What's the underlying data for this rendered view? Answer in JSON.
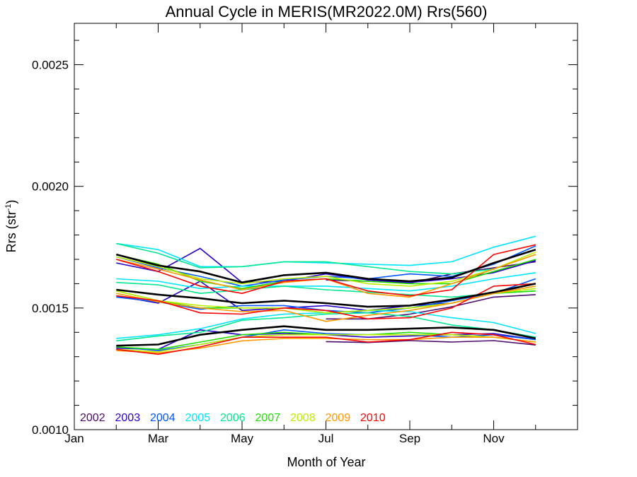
{
  "chart_data": {
    "type": "line",
    "title": "Annual Cycle in MERIS(MR2022.0M) Rrs(560)",
    "xlabel": "Month of Year",
    "ylabel_main": "Rrs (str",
    "ylabel_sup": "-1",
    "ylabel_tail": ")",
    "xlim": [
      1,
      13
    ],
    "ylim": [
      0.001,
      0.00267
    ],
    "x_ticks": [
      {
        "value": 1,
        "label": "Jan"
      },
      {
        "value": 3,
        "label": "Mar"
      },
      {
        "value": 5,
        "label": "May"
      },
      {
        "value": 7,
        "label": "Jul"
      },
      {
        "value": 9,
        "label": "Sep"
      },
      {
        "value": 11,
        "label": "Nov"
      }
    ],
    "y_ticks": [
      {
        "value": 0.001,
        "label": "0.0010"
      },
      {
        "value": 0.0015,
        "label": "0.0015"
      },
      {
        "value": 0.002,
        "label": "0.0020"
      },
      {
        "value": 0.0025,
        "label": "0.0025"
      }
    ],
    "y_minor_ticks": [
      0.0011,
      0.0012,
      0.0013,
      0.0014,
      0.0016,
      0.0017,
      0.0018,
      0.0019,
      0.0021,
      0.0022,
      0.0023,
      0.0024,
      0.0026
    ],
    "x_minor_ticks": [
      2,
      4,
      6,
      8,
      10,
      12
    ],
    "grid": false,
    "legend_position": "bottom-left",
    "series": [
      {
        "name": "2002",
        "group": "high",
        "color": "#4b0a6e",
        "x": [
          7,
          8,
          9,
          10,
          11,
          12
        ],
        "y": [
          0.001615,
          0.00161,
          0.001602,
          0.00164,
          0.001665,
          0.00169
        ]
      },
      {
        "name": "2002",
        "group": "mid",
        "color": "#4b0a6e",
        "x": [
          7,
          8,
          9,
          10,
          11,
          12
        ],
        "y": [
          0.001455,
          0.001455,
          0.001475,
          0.001505,
          0.001545,
          0.001555
        ]
      },
      {
        "name": "2002",
        "group": "low",
        "color": "#4b0a6e",
        "x": [
          7,
          8,
          9,
          10,
          11,
          12
        ],
        "y": [
          0.001362,
          0.001358,
          0.001366,
          0.00136,
          0.001366,
          0.001348
        ]
      },
      {
        "name": "2003",
        "group": "high",
        "color": "#2a00c8",
        "x": [
          2,
          3,
          4,
          5,
          6,
          7,
          8,
          9,
          10,
          11,
          12
        ],
        "y": [
          0.001685,
          0.00165,
          0.001745,
          0.001605,
          0.00161,
          0.00164,
          0.001615,
          0.001605,
          0.00162,
          0.001645,
          0.001695
        ]
      },
      {
        "name": "2003",
        "group": "mid",
        "color": "#2a00c8",
        "x": [
          2,
          3,
          4,
          5,
          6,
          7,
          8,
          9,
          10,
          11,
          12
        ],
        "y": [
          0.00155,
          0.00152,
          0.00161,
          0.00149,
          0.0015,
          0.00151,
          0.00149,
          0.00151,
          0.00152,
          0.00156,
          0.0016
        ]
      },
      {
        "name": "2003",
        "group": "low",
        "color": "#2a00c8",
        "x": [
          2,
          3,
          4,
          5,
          6,
          7,
          8,
          9,
          10,
          11,
          12
        ],
        "y": [
          0.001335,
          0.00133,
          0.00141,
          0.00139,
          0.001395,
          0.00139,
          0.00138,
          0.001385,
          0.00139,
          0.001395,
          0.00137
        ]
      },
      {
        "name": "2004",
        "group": "high",
        "color": "#0055ff",
        "x": [
          2,
          3,
          4,
          5,
          6,
          7,
          8,
          9,
          10,
          11,
          12
        ],
        "y": [
          0.00171,
          0.001665,
          0.00163,
          0.00159,
          0.001615,
          0.00163,
          0.00162,
          0.00164,
          0.00163,
          0.00168,
          0.001755
        ]
      },
      {
        "name": "2004",
        "group": "mid",
        "color": "#0055ff",
        "x": [
          2,
          3,
          4,
          5,
          6,
          7,
          8,
          9,
          10,
          11,
          12
        ],
        "y": [
          0.001545,
          0.001525,
          0.001495,
          0.00151,
          0.00151,
          0.00149,
          0.00148,
          0.0015,
          0.00153,
          0.00156,
          0.00162
        ]
      },
      {
        "name": "2004",
        "group": "low",
        "color": "#0055ff",
        "x": [
          2,
          3,
          4,
          5,
          6,
          7,
          8,
          9,
          10,
          11,
          12
        ],
        "y": [
          0.00134,
          0.001325,
          0.00135,
          0.00138,
          0.00141,
          0.001395,
          0.00139,
          0.00139,
          0.00138,
          0.00139,
          0.00137
        ]
      },
      {
        "name": "2005",
        "group": "high",
        "color": "#00e5ff",
        "x": [
          2,
          3,
          4,
          5,
          6,
          7,
          8,
          9,
          10,
          11,
          12
        ],
        "y": [
          0.001765,
          0.00174,
          0.00167,
          0.00167,
          0.00169,
          0.001685,
          0.00168,
          0.001675,
          0.00169,
          0.00175,
          0.001795
        ]
      },
      {
        "name": "2005",
        "group": "mid",
        "color": "#00e5ff",
        "x": [
          2,
          3,
          4,
          5,
          6,
          7,
          8,
          9,
          10,
          11,
          12
        ],
        "y": [
          0.00162,
          0.00161,
          0.00158,
          0.00159,
          0.00159,
          0.00159,
          0.00158,
          0.00157,
          0.00159,
          0.00162,
          0.001645
        ]
      },
      {
        "name": "2005",
        "group": "low",
        "color": "#00e5ff",
        "x": [
          2,
          3,
          4,
          5,
          6,
          7,
          8,
          9,
          10,
          11,
          12
        ],
        "y": [
          0.001375,
          0.00139,
          0.001415,
          0.001455,
          0.001475,
          0.00148,
          0.00149,
          0.001485,
          0.00146,
          0.00144,
          0.001395
        ]
      },
      {
        "name": "2006",
        "group": "high",
        "color": "#00e890",
        "x": [
          2,
          3,
          4,
          5,
          6,
          7,
          8,
          9,
          10,
          11,
          12
        ],
        "y": [
          0.001765,
          0.001725,
          0.001665,
          0.00167,
          0.00169,
          0.00169,
          0.00167,
          0.00165,
          0.00164,
          0.00166,
          0.00172
        ]
      },
      {
        "name": "2006",
        "group": "mid",
        "color": "#00e890",
        "x": [
          2,
          3,
          4,
          5,
          6,
          7,
          8,
          9,
          10,
          11,
          12
        ],
        "y": [
          0.001605,
          0.001595,
          0.00156,
          0.001575,
          0.00159,
          0.001575,
          0.001565,
          0.001555,
          0.001545,
          0.00156,
          0.00157
        ]
      },
      {
        "name": "2006",
        "group": "low",
        "color": "#00e890",
        "x": [
          2,
          3,
          4,
          5,
          6,
          7,
          8,
          9,
          10,
          11,
          12
        ],
        "y": [
          0.001365,
          0.001385,
          0.0014,
          0.00145,
          0.00146,
          0.001475,
          0.00148,
          0.001465,
          0.00143,
          0.00141,
          0.00138
        ]
      },
      {
        "name": "2007",
        "group": "high",
        "color": "#22dd00",
        "x": [
          2,
          3,
          4,
          5,
          6,
          7,
          8,
          9,
          10,
          11,
          12
        ],
        "y": [
          0.00172,
          0.00168,
          0.00161,
          0.00158,
          0.00161,
          0.00162,
          0.00161,
          0.0016,
          0.0016,
          0.00165,
          0.0017
        ]
      },
      {
        "name": "2007",
        "group": "mid",
        "color": "#22dd00",
        "x": [
          2,
          3,
          4,
          5,
          6,
          7,
          8,
          9,
          10,
          11,
          12
        ],
        "y": [
          0.00157,
          0.00153,
          0.0015,
          0.0015,
          0.0015,
          0.00148,
          0.00149,
          0.0015,
          0.00152,
          0.00156,
          0.00157
        ]
      },
      {
        "name": "2007",
        "group": "low",
        "color": "#22dd00",
        "x": [
          2,
          3,
          4,
          5,
          6,
          7,
          8,
          9,
          10,
          11,
          12
        ],
        "y": [
          0.00134,
          0.00133,
          0.00136,
          0.00139,
          0.0014,
          0.00139,
          0.00139,
          0.0014,
          0.00139,
          0.00138,
          0.00136
        ]
      },
      {
        "name": "2008",
        "group": "high",
        "color": "#bbee00",
        "x": [
          2,
          3,
          4,
          5,
          6,
          7,
          8,
          9,
          10,
          11,
          12
        ],
        "y": [
          0.00171,
          0.00167,
          0.00162,
          0.0016,
          0.00162,
          0.00163,
          0.0016,
          0.00159,
          0.00161,
          0.00166,
          0.00173
        ]
      },
      {
        "name": "2008",
        "group": "mid",
        "color": "#bbee00",
        "x": [
          2,
          3,
          4,
          5,
          6,
          7,
          8,
          9,
          10,
          11,
          12
        ],
        "y": [
          0.00157,
          0.00153,
          0.00151,
          0.0015,
          0.0015,
          0.00148,
          0.00149,
          0.0015,
          0.00152,
          0.00156,
          0.00158
        ]
      },
      {
        "name": "2008",
        "group": "low",
        "color": "#bbee00",
        "x": [
          2,
          3,
          4,
          5,
          6,
          7,
          8,
          9,
          10,
          11,
          12
        ],
        "y": [
          0.00133,
          0.00132,
          0.00135,
          0.00138,
          0.00139,
          0.00139,
          0.00139,
          0.00139,
          0.00139,
          0.00138,
          0.00136
        ]
      },
      {
        "name": "2009",
        "group": "high",
        "color": "#ff9900",
        "x": [
          2,
          3,
          4,
          5,
          6,
          7,
          8,
          9,
          10,
          11,
          12
        ],
        "y": [
          0.0017,
          0.00166,
          0.001615,
          0.001575,
          0.001605,
          0.00162,
          0.00156,
          0.001545,
          0.0016,
          0.00166,
          0.00172
        ]
      },
      {
        "name": "2009",
        "group": "mid",
        "color": "#ff9900",
        "x": [
          2,
          3,
          4,
          5,
          6,
          7,
          8,
          9,
          10,
          11,
          12
        ],
        "y": [
          0.00156,
          0.001525,
          0.0015,
          0.001485,
          0.00149,
          0.001445,
          0.00147,
          0.00149,
          0.00152,
          0.00156,
          0.00159
        ]
      },
      {
        "name": "2009",
        "group": "low",
        "color": "#ff9900",
        "x": [
          2,
          3,
          4,
          5,
          6,
          7,
          8,
          9,
          10,
          11,
          12
        ],
        "y": [
          0.001325,
          0.001315,
          0.001335,
          0.001365,
          0.001375,
          0.001375,
          0.00137,
          0.00137,
          0.00138,
          0.00138,
          0.00136
        ]
      },
      {
        "name": "2010",
        "group": "high",
        "color": "#ff0000",
        "x": [
          2,
          3,
          4,
          5,
          6,
          7,
          8,
          9,
          10,
          11,
          12
        ],
        "y": [
          0.0017,
          0.00165,
          0.00159,
          0.00156,
          0.00161,
          0.00162,
          0.00157,
          0.00155,
          0.001575,
          0.00172,
          0.00176
        ]
      },
      {
        "name": "2010",
        "group": "mid",
        "color": "#ff0000",
        "x": [
          2,
          3,
          4,
          5,
          6,
          7,
          8,
          9,
          10,
          11,
          12
        ],
        "y": [
          0.00155,
          0.00153,
          0.00148,
          0.001475,
          0.0015,
          0.00149,
          0.001455,
          0.00146,
          0.0015,
          0.00159,
          0.0016
        ]
      },
      {
        "name": "2010",
        "group": "low",
        "color": "#ff0000",
        "x": [
          2,
          3,
          4,
          5,
          6,
          7,
          8,
          9,
          10,
          11,
          12
        ],
        "y": [
          0.00133,
          0.00131,
          0.00134,
          0.00138,
          0.00138,
          0.00138,
          0.00136,
          0.00137,
          0.0014,
          0.00139,
          0.00135
        ]
      },
      {
        "name": "",
        "group": "high-mean",
        "color": "#000000",
        "bold": true,
        "x": [
          2,
          3,
          4,
          5,
          6,
          7,
          8,
          9,
          10,
          11,
          12
        ],
        "y": [
          0.00172,
          0.001675,
          0.00165,
          0.001605,
          0.001635,
          0.001645,
          0.00162,
          0.00161,
          0.001625,
          0.001685,
          0.00174
        ]
      },
      {
        "name": "",
        "group": "mid-mean",
        "color": "#000000",
        "bold": true,
        "x": [
          2,
          3,
          4,
          5,
          6,
          7,
          8,
          9,
          10,
          11,
          12
        ],
        "y": [
          0.001575,
          0.001555,
          0.00154,
          0.00152,
          0.00153,
          0.00152,
          0.001505,
          0.00151,
          0.001535,
          0.001565,
          0.0016
        ]
      },
      {
        "name": "",
        "group": "low-mean",
        "color": "#000000",
        "bold": true,
        "x": [
          2,
          3,
          4,
          5,
          6,
          7,
          8,
          9,
          10,
          11,
          12
        ],
        "y": [
          0.001345,
          0.00135,
          0.00139,
          0.00141,
          0.001425,
          0.00141,
          0.00141,
          0.001415,
          0.00142,
          0.00141,
          0.001375
        ]
      }
    ],
    "legend": [
      {
        "label": "2002",
        "color": "#4b0a6e"
      },
      {
        "label": "2003",
        "color": "#2a00c8"
      },
      {
        "label": "2004",
        "color": "#0055ff"
      },
      {
        "label": "2005",
        "color": "#00e5ff"
      },
      {
        "label": "2006",
        "color": "#00e890"
      },
      {
        "label": "2007",
        "color": "#22dd00"
      },
      {
        "label": "2008",
        "color": "#bbee00"
      },
      {
        "label": "2009",
        "color": "#ff9900"
      },
      {
        "label": "2010",
        "color": "#ff0000"
      }
    ]
  }
}
